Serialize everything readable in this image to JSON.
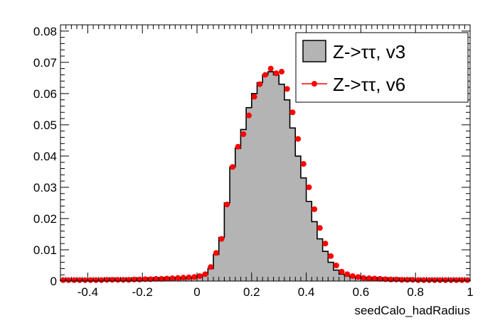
{
  "chart_data": {
    "type": "histogram",
    "xlabel": "seedCalo_hadRadius",
    "ylabel": "",
    "xlim": [
      -0.5,
      1.0
    ],
    "ylim": [
      0,
      0.082
    ],
    "grid": false,
    "legend_position": "top-right",
    "x_ticks": [
      {
        "value": -0.4,
        "label": "-0.4"
      },
      {
        "value": -0.2,
        "label": "-0.2"
      },
      {
        "value": 0,
        "label": "0"
      },
      {
        "value": 0.2,
        "label": "0.2"
      },
      {
        "value": 0.4,
        "label": "0.4"
      },
      {
        "value": 0.6,
        "label": "0.6"
      },
      {
        "value": 0.8,
        "label": "0.8"
      },
      {
        "value": 1.0,
        "label": "1"
      }
    ],
    "y_ticks": [
      {
        "value": 0,
        "label": "0"
      },
      {
        "value": 0.01,
        "label": "0.01"
      },
      {
        "value": 0.02,
        "label": "0.02"
      },
      {
        "value": 0.03,
        "label": "0.03"
      },
      {
        "value": 0.04,
        "label": "0.04"
      },
      {
        "value": 0.05,
        "label": "0.05"
      },
      {
        "value": 0.06,
        "label": "0.06"
      },
      {
        "value": 0.07,
        "label": "0.07"
      },
      {
        "value": 0.08,
        "label": "0.08"
      }
    ],
    "bin_edges_start": -0.5,
    "bin_width": 0.02,
    "series": [
      {
        "name": "Z->ττ, v3",
        "style": "filled-histogram",
        "fill_color": "#b4b4b4",
        "line_color": "#000000",
        "values": [
          0.0003,
          0.0003,
          0.0003,
          0.0003,
          0.0003,
          0.0003,
          0.0003,
          0.0003,
          0.0004,
          0.0004,
          0.0004,
          0.0004,
          0.0004,
          0.0005,
          0.0005,
          0.0006,
          0.0006,
          0.0007,
          0.0007,
          0.0008,
          0.0009,
          0.001,
          0.0011,
          0.0012,
          0.0013,
          0.0015,
          0.002,
          0.004,
          0.0085,
          0.014,
          0.025,
          0.0365,
          0.0425,
          0.0485,
          0.0555,
          0.06,
          0.0635,
          0.066,
          0.067,
          0.066,
          0.063,
          0.058,
          0.049,
          0.04,
          0.033,
          0.0255,
          0.019,
          0.0135,
          0.0095,
          0.006,
          0.0035,
          0.0022,
          0.0016,
          0.0012,
          0.001,
          0.0009,
          0.0008,
          0.0007,
          0.0006,
          0.0005,
          0.0005,
          0.0004,
          0.0004,
          0.0004,
          0.0003,
          0.0003,
          0.0003,
          0.0003,
          0.0003,
          0.0003,
          0.0003,
          0.0003,
          0.0003,
          0.0003,
          0.0003
        ]
      },
      {
        "name": "Z->ττ, v6",
        "style": "markers",
        "marker_color": "#ff0000",
        "values": [
          0.0003,
          0.0003,
          0.0003,
          0.0003,
          0.0003,
          0.0003,
          0.0003,
          0.0003,
          0.0004,
          0.0004,
          0.0004,
          0.0004,
          0.0004,
          0.0005,
          0.0005,
          0.0006,
          0.0006,
          0.0007,
          0.0007,
          0.0008,
          0.0009,
          0.001,
          0.0011,
          0.0012,
          0.0013,
          0.0016,
          0.0022,
          0.0045,
          0.009,
          0.0135,
          0.0245,
          0.0365,
          0.043,
          0.047,
          0.053,
          0.059,
          0.063,
          0.066,
          0.068,
          0.0665,
          0.067,
          0.0615,
          0.054,
          0.0455,
          0.0375,
          0.03,
          0.023,
          0.017,
          0.012,
          0.008,
          0.005,
          0.003,
          0.0022,
          0.0016,
          0.0013,
          0.001,
          0.0009,
          0.0008,
          0.0007,
          0.0006,
          0.0005,
          0.0005,
          0.0004,
          0.0004,
          0.0004,
          0.0003,
          0.0003,
          0.0003,
          0.0003,
          0.0003,
          0.0003,
          0.0003,
          0.0003,
          0.0003,
          0.0003
        ]
      }
    ]
  }
}
